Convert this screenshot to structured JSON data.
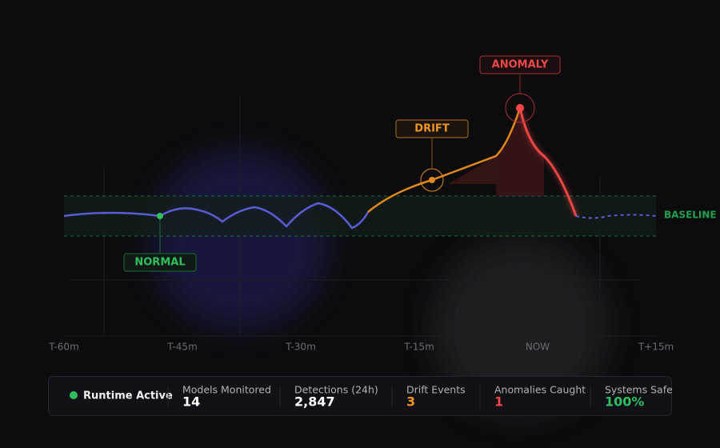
{
  "annotations": {
    "anomaly": "ANOMALY",
    "drift": "DRIFT",
    "normal": "NORMAL",
    "baseline": "BASELINE"
  },
  "time_axis": [
    "T-60m",
    "T-45m",
    "T-30m",
    "T-15m",
    "NOW",
    "T+15m"
  ],
  "status": "Runtime Active",
  "stats": [
    {
      "label": "Models Monitored",
      "value": "14"
    },
    {
      "label": "Detections (24h)",
      "value": "2,847"
    },
    {
      "label": "Drift Events",
      "value": "3"
    },
    {
      "label": "Anomalies Caught",
      "value": "1"
    },
    {
      "label": "Systems Safe",
      "value": "100%"
    }
  ]
}
